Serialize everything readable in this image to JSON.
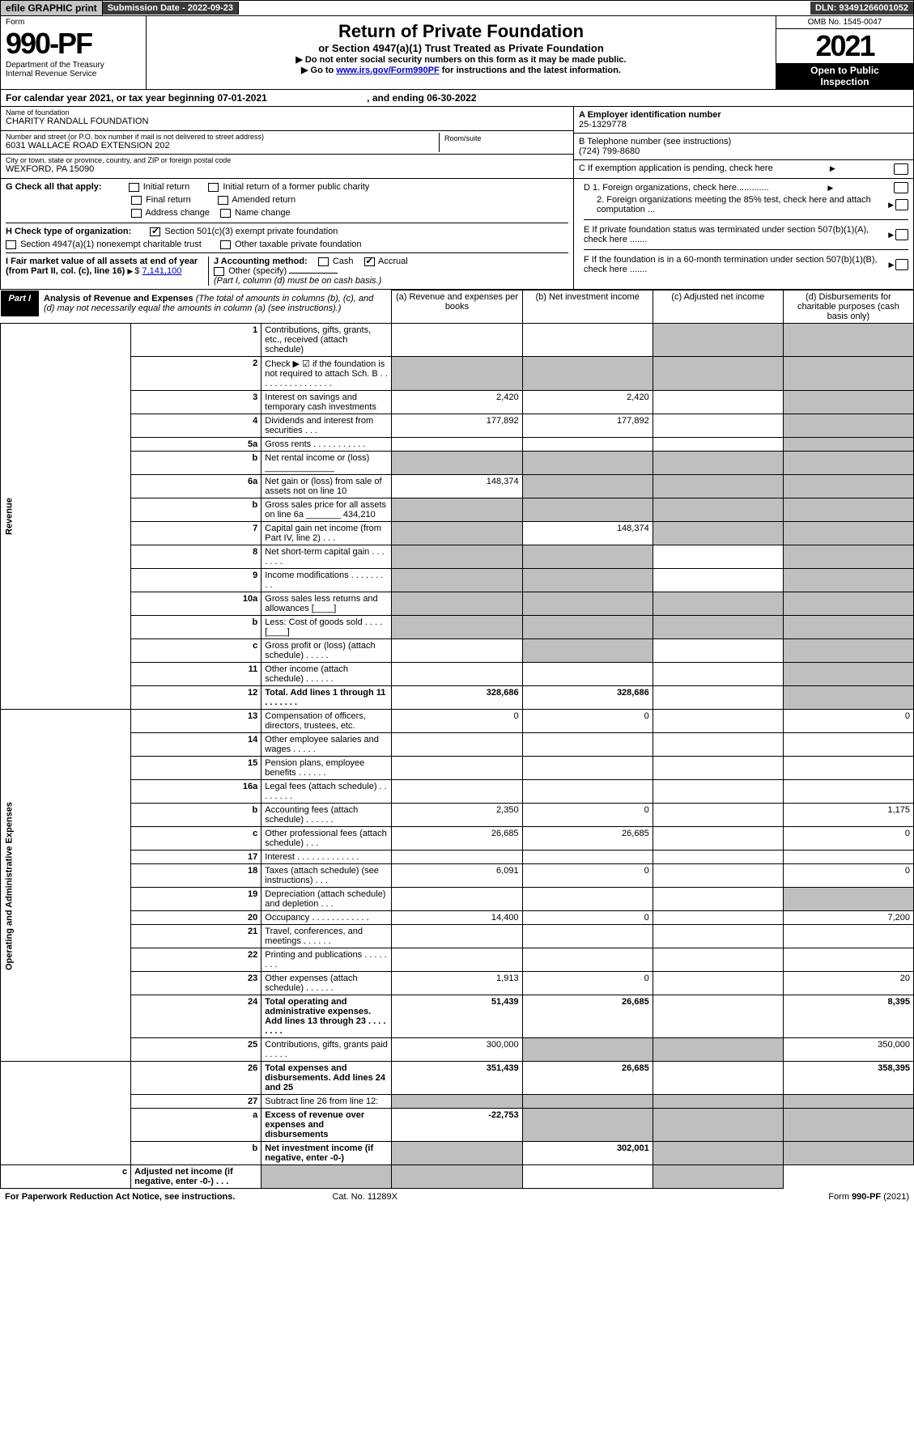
{
  "topbar": {
    "efile": "efile GRAPHIC print",
    "sub_label": "Submission Date - 2022-09-23",
    "dln": "DLN: 93491266001052"
  },
  "header": {
    "form_label": "Form",
    "form_num": "990-PF",
    "dept1": "Department of the Treasury",
    "dept2": "Internal Revenue Service",
    "title": "Return of Private Foundation",
    "subtitle": "or Section 4947(a)(1) Trust Treated as Private Foundation",
    "note1": "▶ Do not enter social security numbers on this form as it may be made public.",
    "note2_pre": "▶ Go to ",
    "note2_link": "www.irs.gov/Form990PF",
    "note2_post": " for instructions and the latest information.",
    "omb": "OMB No. 1545-0047",
    "year": "2021",
    "open1": "Open to Public",
    "open2": "Inspection"
  },
  "calyear": {
    "text": "For calendar year 2021, or tax year beginning 07-01-2021",
    "ending": ", and ending 06-30-2022"
  },
  "info": {
    "name_lbl": "Name of foundation",
    "name_val": "CHARITY RANDALL FOUNDATION",
    "addr_lbl": "Number and street (or P.O. box number if mail is not delivered to street address)",
    "addr_val": "6031 WALLACE ROAD EXTENSION 202",
    "room_lbl": "Room/suite",
    "city_lbl": "City or town, state or province, country, and ZIP or foreign postal code",
    "city_val": "WEXFORD, PA  15090",
    "a_lbl": "A Employer identification number",
    "a_val": "25-1329778",
    "b_lbl": "B Telephone number (see instructions)",
    "b_val": "(724) 799-8680",
    "c_lbl": "C If exemption application is pending, check here"
  },
  "g": {
    "label": "G Check all that apply:",
    "initial": "Initial return",
    "initial_former": "Initial return of a former public charity",
    "final": "Final return",
    "amended": "Amended return",
    "addr_change": "Address change",
    "name_change": "Name change"
  },
  "h": {
    "label": "H Check type of organization:",
    "sec501": "Section 501(c)(3) exempt private foundation",
    "sec4947": "Section 4947(a)(1) nonexempt charitable trust",
    "other_tax": "Other taxable private foundation"
  },
  "i": {
    "label": "I Fair market value of all assets at end of year (from Part II, col. (c), line 16)",
    "value": "7,141,100"
  },
  "j": {
    "label": "J Accounting method:",
    "cash": "Cash",
    "accrual": "Accrual",
    "other": "Other (specify)",
    "note": "(Part I, column (d) must be on cash basis.)"
  },
  "d": {
    "d1": "D 1. Foreign organizations, check here.............",
    "d2": "2. Foreign organizations meeting the 85% test, check here and attach computation ..."
  },
  "e": "E  If private foundation status was terminated under section 507(b)(1)(A), check here .......",
  "f": "F  If the foundation is in a 60-month termination under section 507(b)(1)(B), check here .......",
  "part1": {
    "tag": "Part I",
    "title": "Analysis of Revenue and Expenses",
    "note": " (The total of amounts in columns (b), (c), and (d) may not necessarily equal the amounts in column (a) (see instructions).)",
    "col_a": "(a)   Revenue and expenses per books",
    "col_b": "(b)   Net investment income",
    "col_c": "(c)   Adjusted net income",
    "col_d": "(d)   Disbursements for charitable purposes (cash basis only)"
  },
  "sides": {
    "revenue": "Revenue",
    "opex": "Operating and Administrative Expenses"
  },
  "rows": [
    {
      "n": "1",
      "d": "Contributions, gifts, grants, etc., received (attach schedule)",
      "a": "",
      "b": "",
      "c": "",
      "dd": "",
      "shade": [
        "c",
        "dd"
      ]
    },
    {
      "n": "2",
      "d": "Check ▶ ☑ if the foundation is not required to attach Sch. B   .  .  .  .  .  .  .  .  .  .  .  .  .  .  .  .",
      "a": "",
      "b": "",
      "c": "",
      "dd": "",
      "shade": [
        "a",
        "b",
        "c",
        "dd"
      ]
    },
    {
      "n": "3",
      "d": "Interest on savings and temporary cash investments",
      "a": "2,420",
      "b": "2,420",
      "c": "",
      "dd": "",
      "shade": [
        "dd"
      ]
    },
    {
      "n": "4",
      "d": "Dividends and interest from securities   .   .   .",
      "a": "177,892",
      "b": "177,892",
      "c": "",
      "dd": "",
      "shade": [
        "dd"
      ]
    },
    {
      "n": "5a",
      "d": "Gross rents   .   .   .   .   .   .   .   .   .   .   .",
      "a": "",
      "b": "",
      "c": "",
      "dd": "",
      "shade": [
        "dd"
      ]
    },
    {
      "n": "b",
      "d": "Net rental income or (loss) ______________",
      "a": "",
      "b": "",
      "c": "",
      "dd": "",
      "shade": [
        "a",
        "b",
        "c",
        "dd"
      ]
    },
    {
      "n": "6a",
      "d": "Net gain or (loss) from sale of assets not on line 10",
      "a": "148,374",
      "b": "",
      "c": "",
      "dd": "",
      "shade": [
        "b",
        "c",
        "dd"
      ]
    },
    {
      "n": "b",
      "d": "Gross sales price for all assets on line 6a _______ 434,210",
      "a": "",
      "b": "",
      "c": "",
      "dd": "",
      "shade": [
        "a",
        "b",
        "c",
        "dd"
      ]
    },
    {
      "n": "7",
      "d": "Capital gain net income (from Part IV, line 2)   .   .   .",
      "a": "",
      "b": "148,374",
      "c": "",
      "dd": "",
      "shade": [
        "a",
        "c",
        "dd"
      ]
    },
    {
      "n": "8",
      "d": "Net short-term capital gain   .   .   .   .   .   .   .",
      "a": "",
      "b": "",
      "c": "",
      "dd": "",
      "shade": [
        "a",
        "b",
        "dd"
      ]
    },
    {
      "n": "9",
      "d": "Income modifications   .   .   .   .   .   .   .   .   .",
      "a": "",
      "b": "",
      "c": "",
      "dd": "",
      "shade": [
        "a",
        "b",
        "dd"
      ]
    },
    {
      "n": "10a",
      "d": "Gross sales less returns and allowances   [____]",
      "a": "",
      "b": "",
      "c": "",
      "dd": "",
      "shade": [
        "a",
        "b",
        "c",
        "dd"
      ]
    },
    {
      "n": "b",
      "d": "Less: Cost of goods sold   .   .   .   .   [____]",
      "a": "",
      "b": "",
      "c": "",
      "dd": "",
      "shade": [
        "a",
        "b",
        "c",
        "dd"
      ]
    },
    {
      "n": "c",
      "d": "Gross profit or (loss) (attach schedule)   .   .   .   .   .",
      "a": "",
      "b": "",
      "c": "",
      "dd": "",
      "shade": [
        "b",
        "dd"
      ]
    },
    {
      "n": "11",
      "d": "Other income (attach schedule)   .   .   .   .   .   .",
      "a": "",
      "b": "",
      "c": "",
      "dd": "",
      "shade": [
        "dd"
      ]
    },
    {
      "n": "12",
      "d": "Total. Add lines 1 through 11   .   .   .   .   .   .   .",
      "a": "328,686",
      "b": "328,686",
      "c": "",
      "dd": "",
      "shade": [
        "dd"
      ],
      "bold": true
    },
    {
      "n": "13",
      "d": "Compensation of officers, directors, trustees, etc.",
      "a": "0",
      "b": "0",
      "c": "",
      "dd": "0"
    },
    {
      "n": "14",
      "d": "Other employee salaries and wages   .   .   .   .   .",
      "a": "",
      "b": "",
      "c": "",
      "dd": ""
    },
    {
      "n": "15",
      "d": "Pension plans, employee benefits   .   .   .   .   .   .",
      "a": "",
      "b": "",
      "c": "",
      "dd": ""
    },
    {
      "n": "16a",
      "d": "Legal fees (attach schedule)   .   .   .   .   .   .   .   .",
      "a": "",
      "b": "",
      "c": "",
      "dd": ""
    },
    {
      "n": "b",
      "d": "Accounting fees (attach schedule)   .   .   .   .   .   .",
      "a": "2,350",
      "b": "0",
      "c": "",
      "dd": "1,175"
    },
    {
      "n": "c",
      "d": "Other professional fees (attach schedule)   .   .   .",
      "a": "26,685",
      "b": "26,685",
      "c": "",
      "dd": "0"
    },
    {
      "n": "17",
      "d": "Interest   .   .   .   .   .   .   .   .   .   .   .   .   .",
      "a": "",
      "b": "",
      "c": "",
      "dd": ""
    },
    {
      "n": "18",
      "d": "Taxes (attach schedule) (see instructions)   .   .   .",
      "a": "6,091",
      "b": "0",
      "c": "",
      "dd": "0"
    },
    {
      "n": "19",
      "d": "Depreciation (attach schedule) and depletion   .   .   .",
      "a": "",
      "b": "",
      "c": "",
      "dd": "",
      "shade": [
        "dd"
      ]
    },
    {
      "n": "20",
      "d": "Occupancy   .   .   .   .   .   .   .   .   .   .   .   .",
      "a": "14,400",
      "b": "0",
      "c": "",
      "dd": "7,200"
    },
    {
      "n": "21",
      "d": "Travel, conferences, and meetings   .   .   .   .   .   .",
      "a": "",
      "b": "",
      "c": "",
      "dd": ""
    },
    {
      "n": "22",
      "d": "Printing and publications   .   .   .   .   .   .   .   .",
      "a": "",
      "b": "",
      "c": "",
      "dd": ""
    },
    {
      "n": "23",
      "d": "Other expenses (attach schedule)   .   .   .   .   .   .",
      "a": "1,913",
      "b": "0",
      "c": "",
      "dd": "20"
    },
    {
      "n": "24",
      "d": "Total operating and administrative expenses. Add lines 13 through 23   .   .   .   .   .   .   .   .",
      "a": "51,439",
      "b": "26,685",
      "c": "",
      "dd": "8,395",
      "bold": true
    },
    {
      "n": "25",
      "d": "Contributions, gifts, grants paid   .   .   .   .   .",
      "a": "300,000",
      "b": "",
      "c": "",
      "dd": "350,000",
      "shade": [
        "b",
        "c"
      ]
    },
    {
      "n": "26",
      "d": "Total expenses and disbursements. Add lines 24 and 25",
      "a": "351,439",
      "b": "26,685",
      "c": "",
      "dd": "358,395",
      "bold": true
    },
    {
      "n": "27",
      "d": "Subtract line 26 from line 12:",
      "a": "",
      "b": "",
      "c": "",
      "dd": "",
      "shade": [
        "a",
        "b",
        "c",
        "dd"
      ]
    },
    {
      "n": "a",
      "d": "Excess of revenue over expenses and disbursements",
      "a": "-22,753",
      "b": "",
      "c": "",
      "dd": "",
      "shade": [
        "b",
        "c",
        "dd"
      ],
      "bold": true
    },
    {
      "n": "b",
      "d": "Net investment income (if negative, enter -0-)",
      "a": "",
      "b": "302,001",
      "c": "",
      "dd": "",
      "shade": [
        "a",
        "c",
        "dd"
      ],
      "bold": true
    },
    {
      "n": "c",
      "d": "Adjusted net income (if negative, enter -0-)   .   .   .",
      "a": "",
      "b": "",
      "c": "",
      "dd": "",
      "shade": [
        "a",
        "b",
        "dd"
      ],
      "bold": true
    }
  ],
  "footer": {
    "paperwork": "For Paperwork Reduction Act Notice, see instructions.",
    "cat": "Cat. No. 11289X",
    "form": "Form 990-PF (2021)"
  }
}
